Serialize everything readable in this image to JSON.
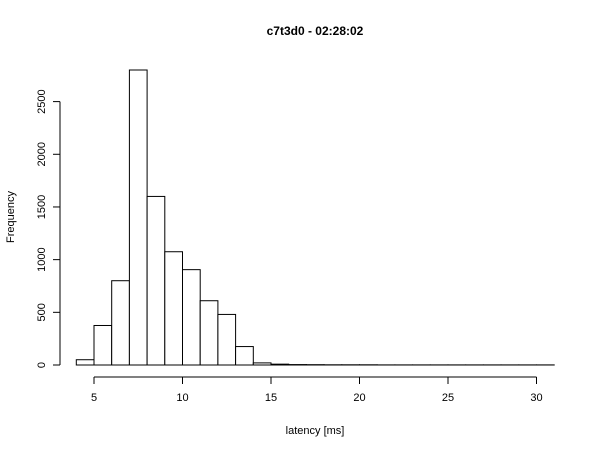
{
  "chart_data": {
    "type": "bar",
    "title": "c7t3d0 - 02:28:02",
    "xlabel": "latency [ms]",
    "ylabel": "Frequency",
    "bin_width": 1,
    "bin_starts": [
      4,
      5,
      6,
      7,
      8,
      9,
      10,
      11,
      12,
      13,
      14,
      15,
      16,
      17,
      18,
      19,
      20,
      21,
      22,
      23,
      24,
      25,
      26,
      27,
      28,
      29,
      30
    ],
    "values": [
      50,
      375,
      800,
      2800,
      1600,
      1075,
      905,
      610,
      480,
      175,
      20,
      8,
      4,
      3,
      2,
      2,
      2,
      1,
      1,
      1,
      1,
      1,
      1,
      1,
      1,
      1,
      1
    ],
    "xlim": [
      4,
      31
    ],
    "ylim": [
      0,
      2800
    ],
    "xticks": [
      5,
      10,
      15,
      20,
      25,
      30
    ],
    "yticks": [
      0,
      500,
      1000,
      1500,
      2000,
      2500
    ],
    "grid": false
  }
}
